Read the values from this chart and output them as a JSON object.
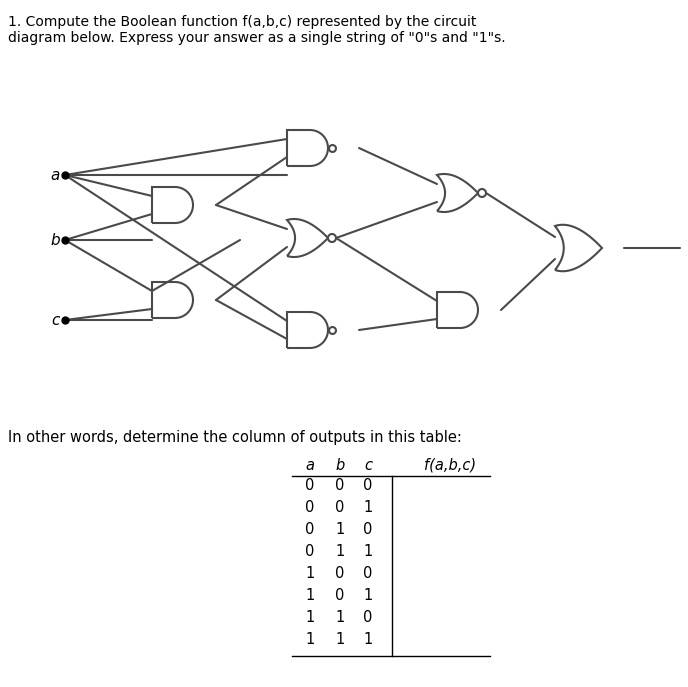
{
  "title_line1": "1. Compute the Boolean function f(a,b,c) represented by the circuit",
  "title_line2": "diagram below. Express your answer as a single string of \"0\"s and \"1\"s.",
  "subtitle": "In other words, determine the column of outputs in this table:",
  "table_headers": [
    "a",
    "b",
    "c",
    "f(a,b,c)"
  ],
  "table_rows": [
    [
      "0",
      "0",
      "0",
      ""
    ],
    [
      "0",
      "0",
      "1",
      ""
    ],
    [
      "0",
      "1",
      "0",
      ""
    ],
    [
      "0",
      "1",
      "1",
      ""
    ],
    [
      "1",
      "0",
      "0",
      ""
    ],
    [
      "1",
      "0",
      "1",
      ""
    ],
    [
      "1",
      "1",
      "0",
      ""
    ],
    [
      "1",
      "1",
      "1",
      ""
    ]
  ],
  "input_labels": [
    "a",
    "b",
    "c"
  ],
  "bg_color": "#ffffff",
  "text_color": "#000000",
  "line_color": "#4a4a4a",
  "gate_color": "#4a4a4a"
}
